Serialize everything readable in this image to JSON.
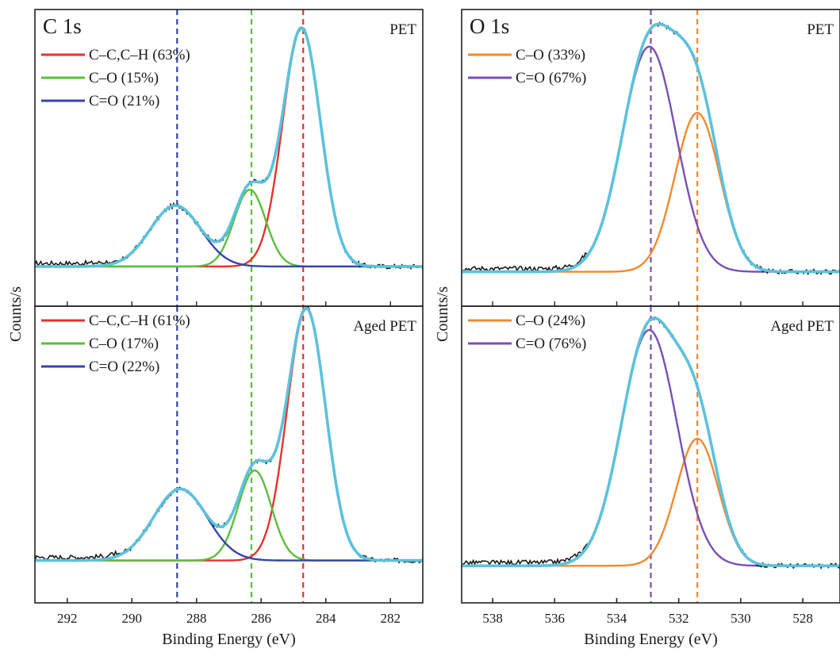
{
  "figure": {
    "y_axis_label": "Counts/s",
    "x_axis_label": "Binding Energy (eV)"
  },
  "colors": {
    "C-C,C-H": "#e8322b",
    "C-O_C1s": "#5cbd3c",
    "C=O_C1s": "#3446a8",
    "C-O_O1s": "#f28a2e",
    "C=O_O1s": "#7a4fb5",
    "fit": "#5bc2dc",
    "raw": "#111111"
  },
  "chart_data": [
    {
      "type": "line",
      "panel": "C 1s",
      "sample": "PET",
      "x_range": [
        293,
        281
      ],
      "x_reversed": true,
      "x_ticks": [
        292,
        290,
        288,
        286,
        284,
        282
      ],
      "xlabel": "Binding Energy (eV)",
      "ylabel": "Counts/s",
      "baseline": 0.09,
      "legend_position": "top-left",
      "reference_lines": [
        {
          "x": 288.6,
          "color": "#3446a8"
        },
        {
          "x": 286.3,
          "color": "#5cbd3c"
        },
        {
          "x": 284.7,
          "color": "#e8322b"
        }
      ],
      "series": [
        {
          "name": "C–C,C–H (63%)",
          "color": "#e8322b",
          "center": 284.75,
          "fwhm": 1.38,
          "height": 0.9
        },
        {
          "name": "C–O (15%)",
          "color": "#5cbd3c",
          "center": 286.35,
          "fwhm": 1.15,
          "height": 0.29
        },
        {
          "name": "C=O (21%)",
          "color": "#3446a8",
          "center": 288.65,
          "fwhm": 1.85,
          "height": 0.23
        }
      ]
    },
    {
      "type": "line",
      "panel": "C 1s",
      "sample": "Aged PET",
      "x_range": [
        293,
        281
      ],
      "x_reversed": true,
      "x_ticks": [
        292,
        290,
        288,
        286,
        284,
        282
      ],
      "xlabel": "Binding Energy (eV)",
      "ylabel": "Counts/s",
      "baseline": 0.1,
      "legend_position": "top-left",
      "reference_lines": [
        {
          "x": 288.6,
          "color": "#3446a8"
        },
        {
          "x": 286.3,
          "color": "#5cbd3c"
        },
        {
          "x": 284.7,
          "color": "#e8322b"
        }
      ],
      "series": [
        {
          "name": "C–C,C–H (61%)",
          "color": "#e8322b",
          "center": 284.6,
          "fwhm": 1.4,
          "height": 0.95
        },
        {
          "name": "C–O (17%)",
          "color": "#5cbd3c",
          "center": 286.2,
          "fwhm": 1.2,
          "height": 0.34
        },
        {
          "name": "C=O (22%)",
          "color": "#3446a8",
          "center": 288.5,
          "fwhm": 1.95,
          "height": 0.27
        }
      ]
    },
    {
      "type": "line",
      "panel": "O 1s",
      "sample": "PET",
      "x_range": [
        539,
        526.8
      ],
      "x_reversed": true,
      "x_ticks": [
        538,
        536,
        534,
        532,
        530,
        528
      ],
      "xlabel": "Binding Energy (eV)",
      "ylabel": "Counts/s",
      "baseline": 0.07,
      "legend_position": "top-left",
      "reference_lines": [
        {
          "x": 532.9,
          "color": "#7a4fb5"
        },
        {
          "x": 531.4,
          "color": "#f28a2e"
        }
      ],
      "series": [
        {
          "name": "C–O (33%)",
          "color": "#f28a2e",
          "center": 531.4,
          "fwhm": 1.7,
          "height": 0.6
        },
        {
          "name": "C=O (67%)",
          "color": "#7a4fb5",
          "center": 532.95,
          "fwhm": 2.05,
          "height": 0.85
        }
      ]
    },
    {
      "type": "line",
      "panel": "O 1s",
      "sample": "Aged PET",
      "x_range": [
        539,
        526.8
      ],
      "x_reversed": true,
      "x_ticks": [
        538,
        536,
        534,
        532,
        530,
        528
      ],
      "xlabel": "Binding Energy (eV)",
      "ylabel": "Counts/s",
      "baseline": 0.08,
      "legend_position": "top-left",
      "reference_lines": [
        {
          "x": 532.9,
          "color": "#7a4fb5"
        },
        {
          "x": 531.4,
          "color": "#f28a2e"
        }
      ],
      "series": [
        {
          "name": "C–O (24%)",
          "color": "#f28a2e",
          "center": 531.4,
          "fwhm": 1.6,
          "height": 0.48
        },
        {
          "name": "C=O (76%)",
          "color": "#7a4fb5",
          "center": 532.95,
          "fwhm": 2.1,
          "height": 0.89
        }
      ]
    }
  ]
}
